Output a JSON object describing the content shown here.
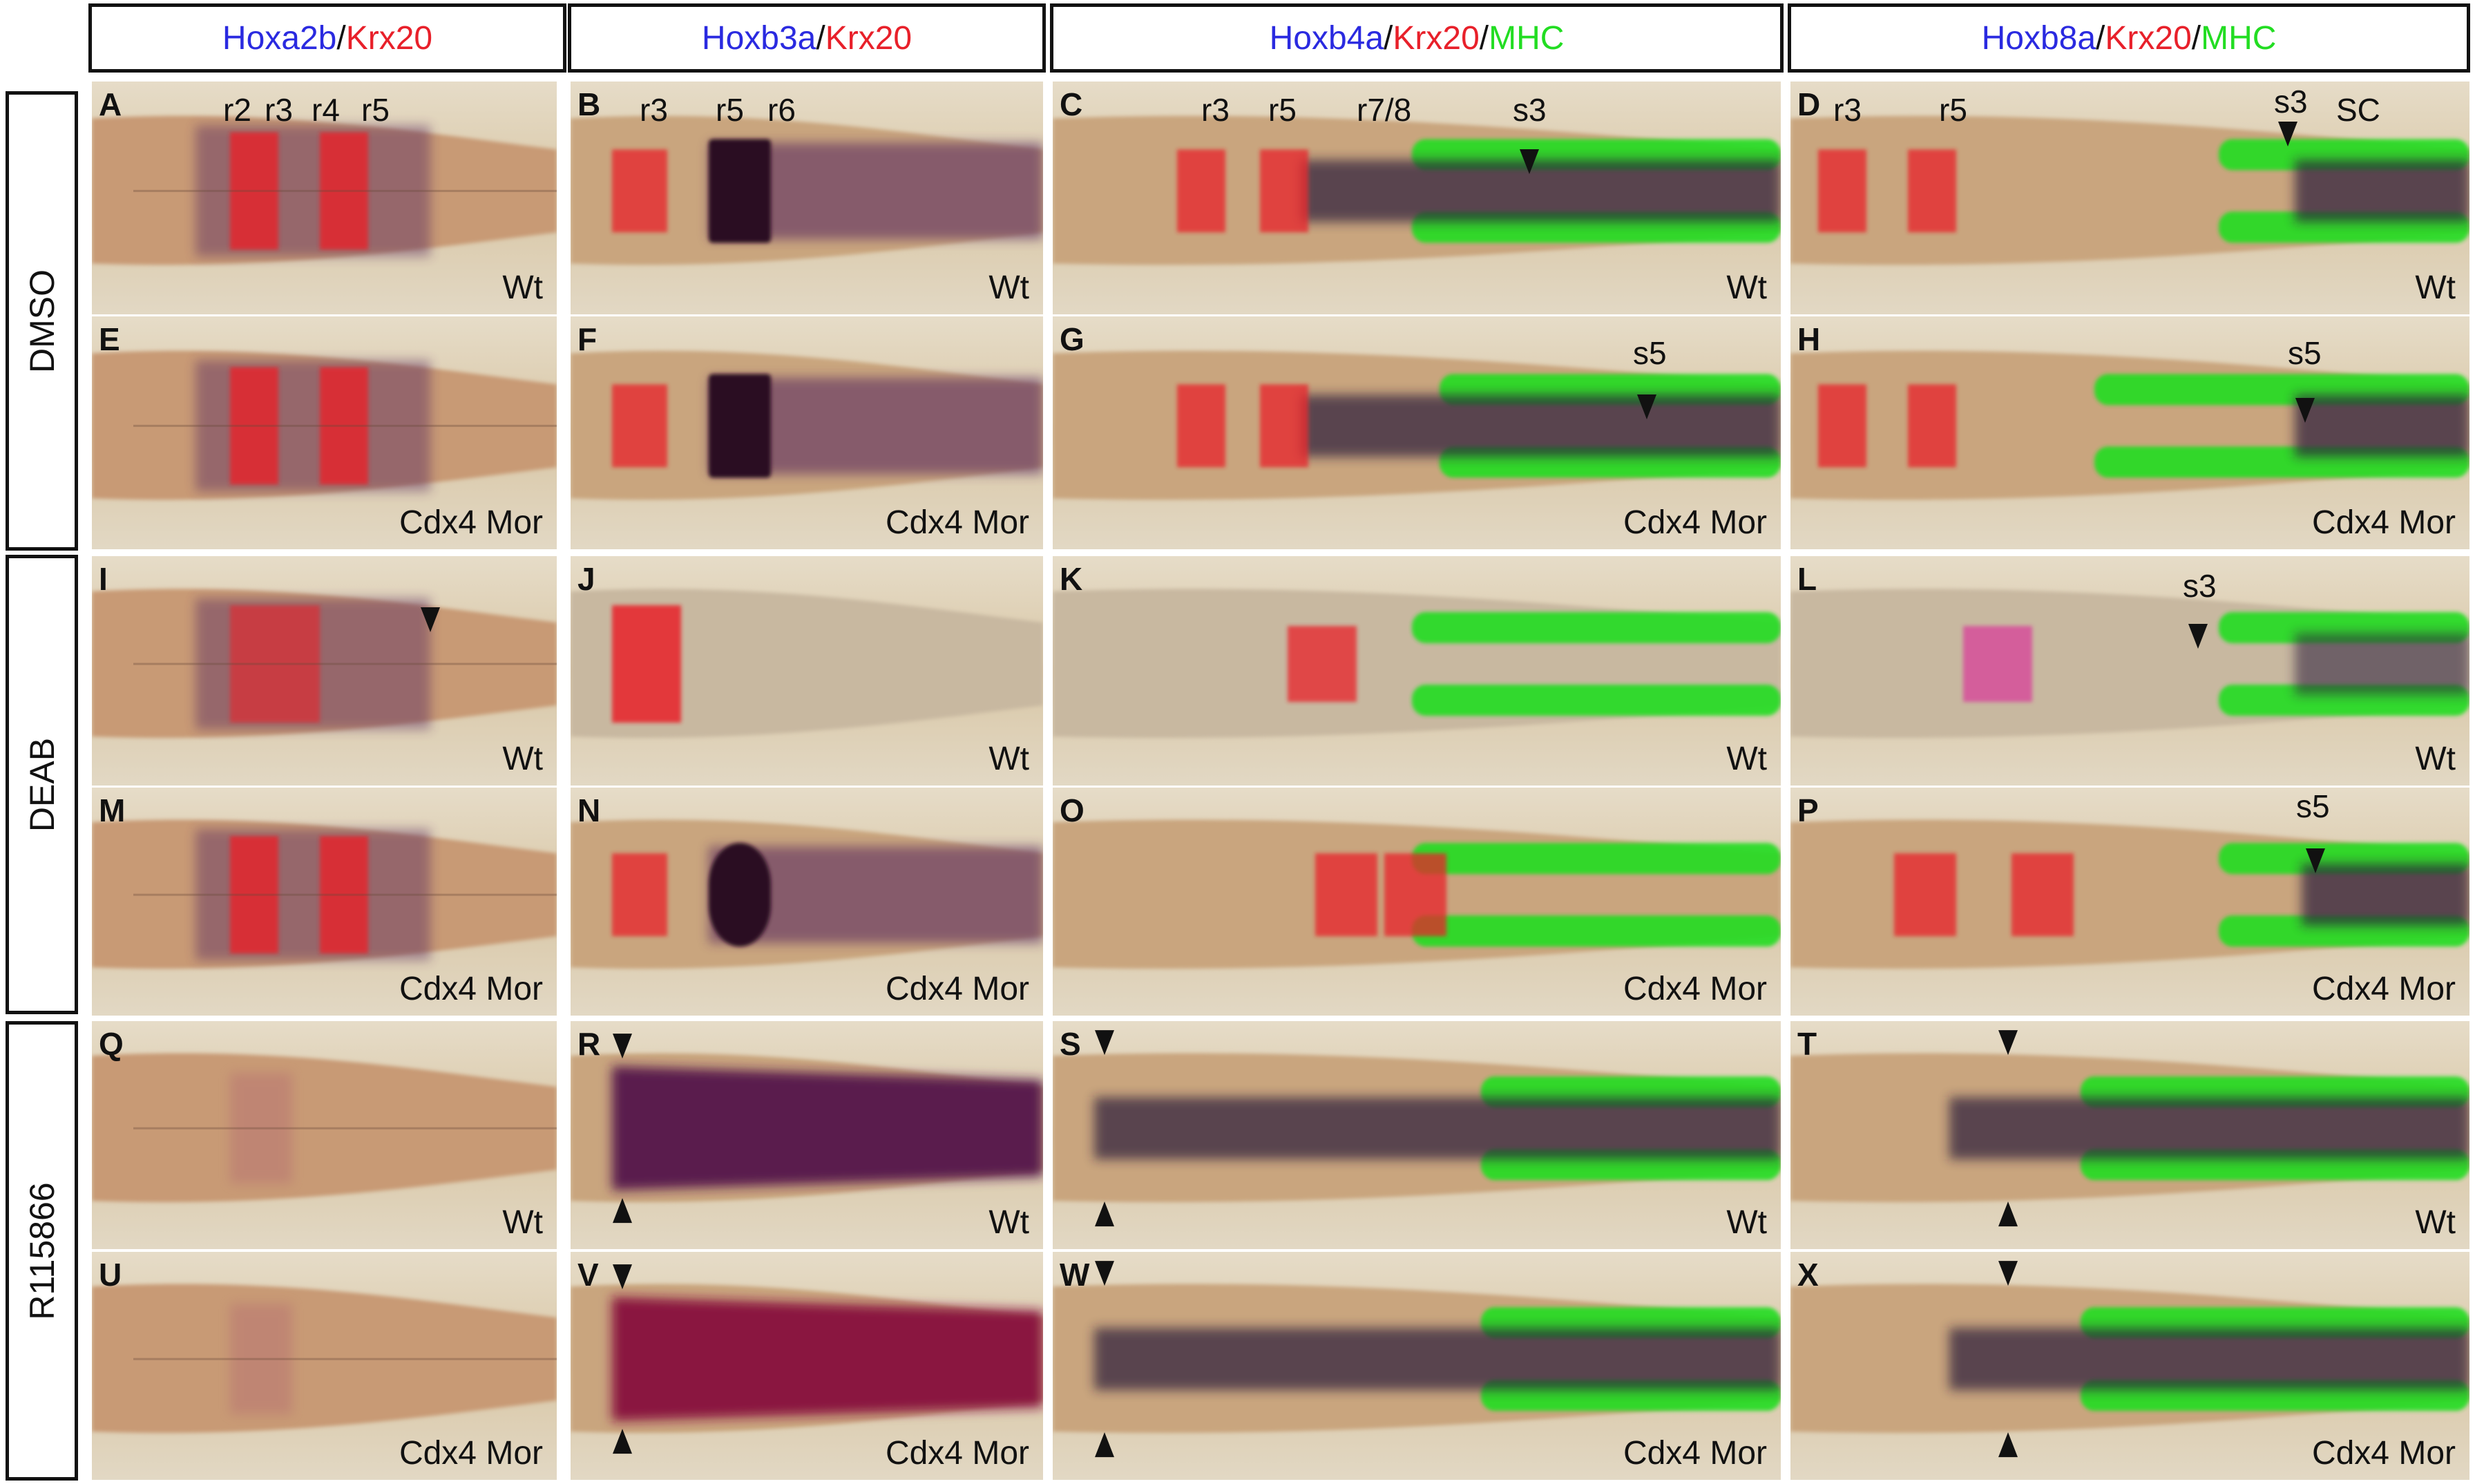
{
  "colors": {
    "probe": "#2a2ae0",
    "krx20": "#e8202a",
    "mhc": "#22dd22",
    "tissue": "#c9a07a",
    "stain_dark": "#2a0e24",
    "stain_purple": "#5a2a5e"
  },
  "columns": [
    {
      "parts": [
        {
          "t": "Hoxa2b",
          "c": "#2a2ae0"
        },
        {
          "t": "/",
          "c": "#111111"
        },
        {
          "t": "Krx20",
          "c": "#e8202a"
        }
      ]
    },
    {
      "parts": [
        {
          "t": "Hoxb3a",
          "c": "#2a2ae0"
        },
        {
          "t": "/",
          "c": "#111111"
        },
        {
          "t": "Krx20",
          "c": "#e8202a"
        }
      ]
    },
    {
      "parts": [
        {
          "t": "Hoxb4a",
          "c": "#2a2ae0"
        },
        {
          "t": "/",
          "c": "#111111"
        },
        {
          "t": "Krx20",
          "c": "#e8202a"
        },
        {
          "t": "/",
          "c": "#111111"
        },
        {
          "t": "MHC",
          "c": "#22dd22"
        }
      ]
    },
    {
      "parts": [
        {
          "t": "Hoxb8a",
          "c": "#2a2ae0"
        },
        {
          "t": "/",
          "c": "#111111"
        },
        {
          "t": "Krx20",
          "c": "#e8202a"
        },
        {
          "t": "/",
          "c": "#111111"
        },
        {
          "t": "MHC",
          "c": "#22dd22"
        }
      ]
    }
  ],
  "treatments": [
    "DMSO",
    "DEAB",
    "R115866"
  ],
  "panels": [
    {
      "letter": "A",
      "genotype": "Wt",
      "labels": [
        "r2",
        "r3",
        "r4",
        "r5"
      ]
    },
    {
      "letter": "B",
      "genotype": "Wt",
      "labels": [
        "r3",
        "r5",
        "r6"
      ]
    },
    {
      "letter": "C",
      "genotype": "Wt",
      "labels": [
        "r3",
        "r5",
        "r7/8",
        "s3"
      ]
    },
    {
      "letter": "D",
      "genotype": "Wt",
      "labels": [
        "r3",
        "r5",
        "s3",
        "SC"
      ]
    },
    {
      "letter": "E",
      "genotype": "Cdx4 Mor",
      "labels": []
    },
    {
      "letter": "F",
      "genotype": "Cdx4 Mor",
      "labels": []
    },
    {
      "letter": "G",
      "genotype": "Cdx4 Mor",
      "labels": [
        "s5"
      ]
    },
    {
      "letter": "H",
      "genotype": "Cdx4 Mor",
      "labels": [
        "s5"
      ]
    },
    {
      "letter": "I",
      "genotype": "Wt",
      "labels": []
    },
    {
      "letter": "J",
      "genotype": "Wt",
      "labels": []
    },
    {
      "letter": "K",
      "genotype": "Wt",
      "labels": []
    },
    {
      "letter": "L",
      "genotype": "Wt",
      "labels": [
        "s3"
      ]
    },
    {
      "letter": "M",
      "genotype": "Cdx4 Mor",
      "labels": []
    },
    {
      "letter": "N",
      "genotype": "Cdx4 Mor",
      "labels": []
    },
    {
      "letter": "O",
      "genotype": "Cdx4 Mor",
      "labels": []
    },
    {
      "letter": "P",
      "genotype": "Cdx4 Mor",
      "labels": [
        "s5"
      ]
    },
    {
      "letter": "Q",
      "genotype": "Wt",
      "labels": []
    },
    {
      "letter": "R",
      "genotype": "Wt",
      "labels": []
    },
    {
      "letter": "S",
      "genotype": "Wt",
      "labels": []
    },
    {
      "letter": "T",
      "genotype": "Wt",
      "labels": []
    },
    {
      "letter": "U",
      "genotype": "Cdx4 Mor",
      "labels": []
    },
    {
      "letter": "V",
      "genotype": "Cdx4 Mor",
      "labels": []
    },
    {
      "letter": "W",
      "genotype": "Cdx4 Mor",
      "labels": []
    },
    {
      "letter": "X",
      "genotype": "Cdx4 Mor",
      "labels": []
    }
  ]
}
